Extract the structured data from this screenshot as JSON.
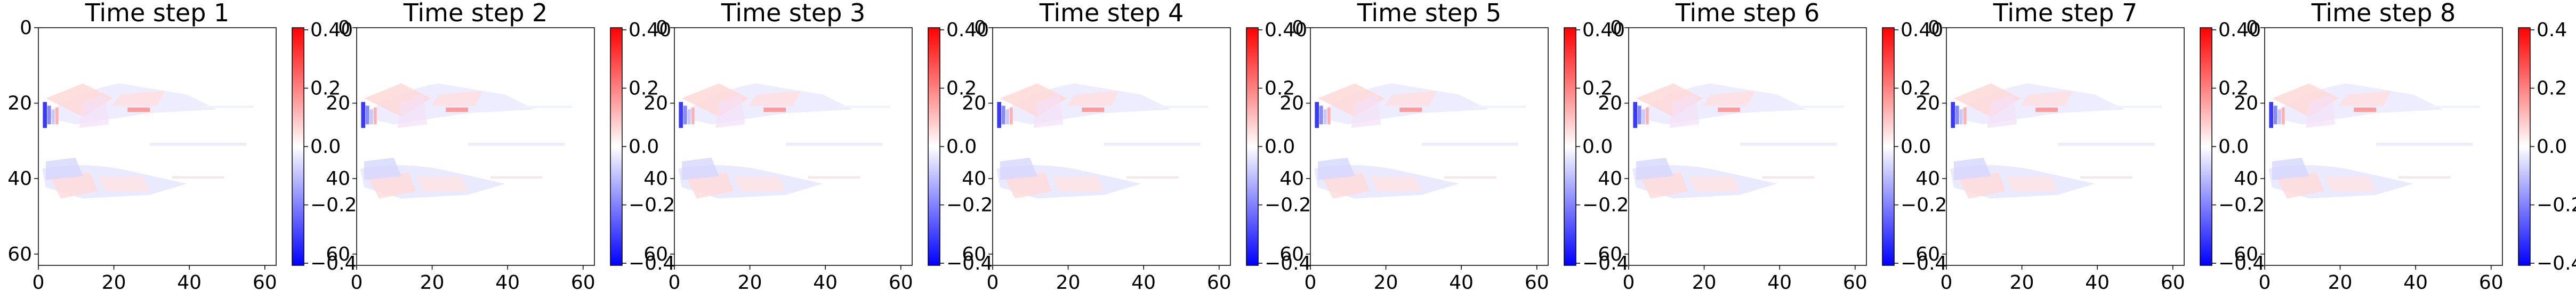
{
  "chart_data": [
    {
      "type": "heatmap",
      "title": "Time step 1",
      "xticks": [
        "0",
        "20",
        "40",
        "60"
      ],
      "yticks": [
        "0",
        "20",
        "40",
        "60"
      ],
      "colorbar_ticks": [
        "0.40",
        "0.2",
        "0.0",
        "−0.2",
        "−0.4"
      ],
      "xlim": [
        0,
        63
      ],
      "ylim": [
        63,
        0
      ],
      "vmin": -0.4,
      "vmax": 0.4,
      "colormap": "bwr",
      "grid": false
    },
    {
      "type": "heatmap",
      "title": "Time step 2",
      "xticks": [
        "0",
        "20",
        "40",
        "60"
      ],
      "yticks": [
        "0",
        "20",
        "40",
        "60"
      ],
      "colorbar_ticks": [
        "0.40",
        "0.2",
        "0.0",
        "−0.2",
        "−0.4"
      ],
      "xlim": [
        0,
        63
      ],
      "ylim": [
        63,
        0
      ],
      "vmin": -0.4,
      "vmax": 0.4,
      "colormap": "bwr",
      "grid": false
    },
    {
      "type": "heatmap",
      "title": "Time step 3",
      "xticks": [
        "0",
        "20",
        "40",
        "60"
      ],
      "yticks": [
        "0",
        "20",
        "40",
        "60"
      ],
      "colorbar_ticks": [
        "0.40",
        "0.2",
        "0.0",
        "−0.2",
        "−0.4"
      ],
      "xlim": [
        0,
        63
      ],
      "ylim": [
        63,
        0
      ],
      "vmin": -0.4,
      "vmax": 0.4,
      "colormap": "bwr",
      "grid": false
    },
    {
      "type": "heatmap",
      "title": "Time step 4",
      "xticks": [
        "0",
        "20",
        "40",
        "60"
      ],
      "yticks": [
        "0",
        "20",
        "40",
        "60"
      ],
      "colorbar_ticks": [
        "0.40",
        "0.2",
        "0.0",
        "−0.2",
        "−0.4"
      ],
      "xlim": [
        0,
        63
      ],
      "ylim": [
        63,
        0
      ],
      "vmin": -0.4,
      "vmax": 0.4,
      "colormap": "bwr",
      "grid": false
    },
    {
      "type": "heatmap",
      "title": "Time step 5",
      "xticks": [
        "0",
        "20",
        "40",
        "60"
      ],
      "yticks": [
        "0",
        "20",
        "40",
        "60"
      ],
      "colorbar_ticks": [
        "0.40",
        "0.2",
        "0.0",
        "−0.2",
        "−0.4"
      ],
      "xlim": [
        0,
        63
      ],
      "ylim": [
        63,
        0
      ],
      "vmin": -0.4,
      "vmax": 0.4,
      "colormap": "bwr",
      "grid": false
    },
    {
      "type": "heatmap",
      "title": "Time step 6",
      "xticks": [
        "0",
        "20",
        "40",
        "60"
      ],
      "yticks": [
        "0",
        "20",
        "40",
        "60"
      ],
      "colorbar_ticks": [
        "0.40",
        "0.2",
        "0.0",
        "−0.2",
        "−0.4"
      ],
      "xlim": [
        0,
        63
      ],
      "ylim": [
        63,
        0
      ],
      "vmin": -0.4,
      "vmax": 0.4,
      "colormap": "bwr",
      "grid": false
    },
    {
      "type": "heatmap",
      "title": "Time step 7",
      "xticks": [
        "0",
        "20",
        "40",
        "60"
      ],
      "yticks": [
        "0",
        "20",
        "40",
        "60"
      ],
      "colorbar_ticks": [
        "0.40",
        "0.2",
        "0.0",
        "−0.2",
        "−0.4"
      ],
      "xlim": [
        0,
        63
      ],
      "ylim": [
        63,
        0
      ],
      "vmin": -0.4,
      "vmax": 0.4,
      "colormap": "bwr",
      "grid": false
    },
    {
      "type": "heatmap",
      "title": "Time step 8",
      "xticks": [
        "0",
        "20",
        "40",
        "60"
      ],
      "yticks": [
        "0",
        "20",
        "40",
        "60"
      ],
      "colorbar_ticks": [
        "0.4",
        "0.2",
        "0.0",
        "−0.2",
        "−0.4"
      ],
      "xlim": [
        0,
        63
      ],
      "ylim": [
        63,
        0
      ],
      "vmin": -0.4,
      "vmax": 0.4,
      "colormap": "bwr",
      "grid": false
    }
  ]
}
